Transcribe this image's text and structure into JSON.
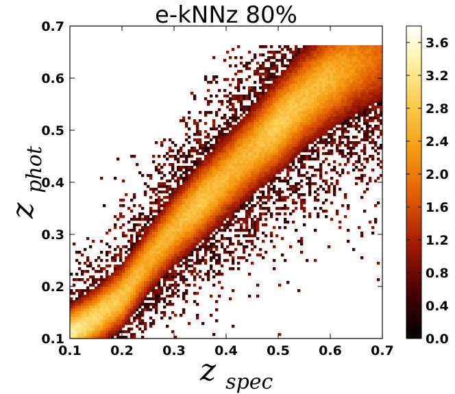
{
  "chart_data": {
    "type": "heatmap",
    "title": "e-kNNz 80%",
    "xlabel": {
      "main": "z",
      "sub": "spec"
    },
    "ylabel": {
      "main": "z",
      "sub": "phot"
    },
    "xlim": [
      0.1,
      0.7
    ],
    "ylim": [
      0.1,
      0.7
    ],
    "x_ticks": [
      "0.1",
      "0.2",
      "0.3",
      "0.4",
      "0.5",
      "0.6",
      "0.7"
    ],
    "y_ticks": [
      "0.1",
      "0.2",
      "0.3",
      "0.4",
      "0.5",
      "0.6",
      "0.7"
    ],
    "colorbar": {
      "min": 0.0,
      "max": 3.8,
      "ticks": [
        "0.0",
        "0.4",
        "0.8",
        "1.2",
        "1.6",
        "2.0",
        "2.4",
        "2.8",
        "3.2",
        "3.6"
      ],
      "colormap": "afmhot_r"
    },
    "ridge": [
      {
        "x": 0.1,
        "y": 0.11,
        "peak": 3.3
      },
      {
        "x": 0.15,
        "y": 0.14,
        "peak": 3.0
      },
      {
        "x": 0.2,
        "y": 0.18,
        "peak": 2.8
      },
      {
        "x": 0.25,
        "y": 0.25,
        "peak": 2.5
      },
      {
        "x": 0.3,
        "y": 0.31,
        "peak": 2.6
      },
      {
        "x": 0.35,
        "y": 0.36,
        "peak": 2.8
      },
      {
        "x": 0.4,
        "y": 0.41,
        "peak": 2.6
      },
      {
        "x": 0.45,
        "y": 0.46,
        "peak": 2.6
      },
      {
        "x": 0.5,
        "y": 0.51,
        "peak": 2.9
      },
      {
        "x": 0.55,
        "y": 0.56,
        "peak": 2.7
      },
      {
        "x": 0.6,
        "y": 0.6,
        "peak": 2.6
      },
      {
        "x": 0.65,
        "y": 0.63,
        "peak": 2.2
      },
      {
        "x": 0.7,
        "y": 0.645,
        "peak": 1.8
      }
    ]
  }
}
